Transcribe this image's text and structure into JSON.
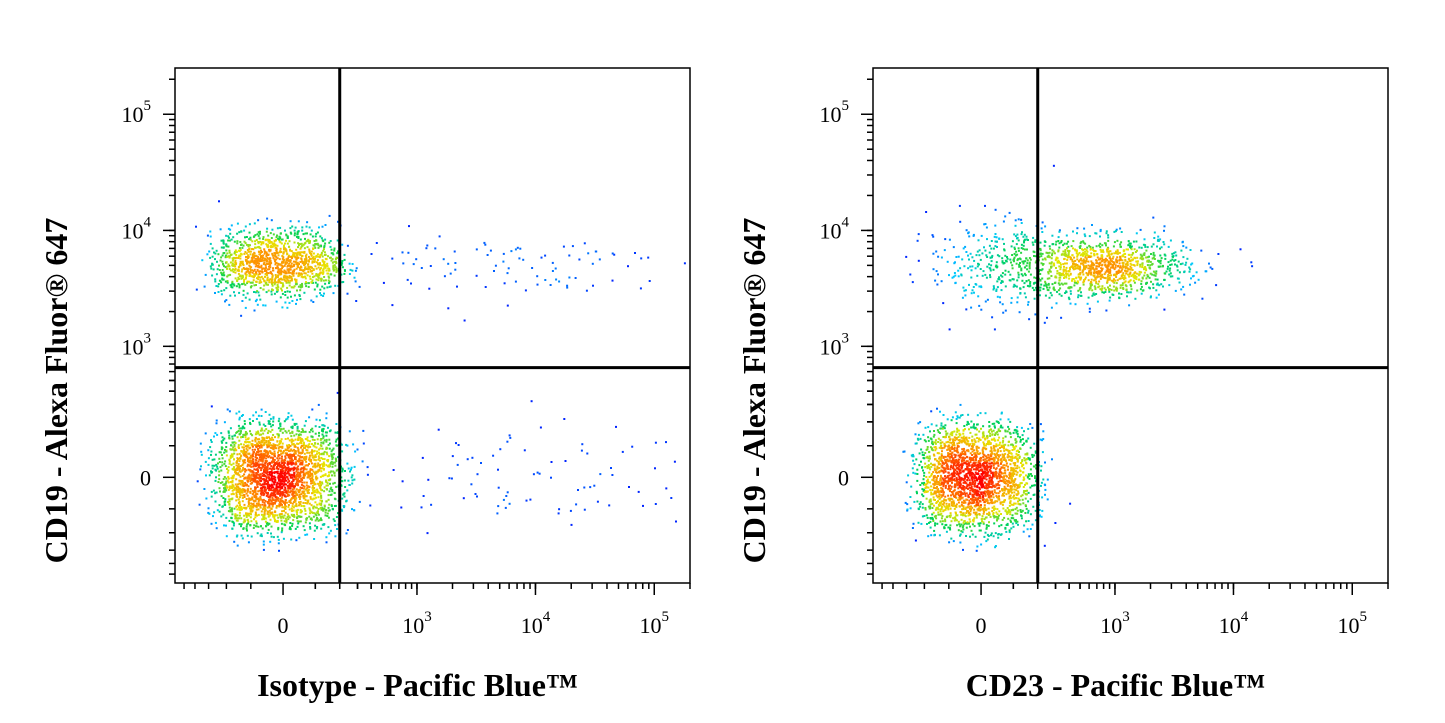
{
  "chart_data": [
    {
      "type": "scatter",
      "subtype": "flow-cytometry-density-dot-plot",
      "xlabel": "Isotype - Pacific Blue™",
      "ylabel": "CD19 - Alexa Fluor® 647",
      "x_scale": "biexponential",
      "y_scale": "biexponential",
      "xlim": [
        -600,
        200000
      ],
      "ylim": [
        -600,
        250000
      ],
      "x_ticks": [
        {
          "value": 0,
          "base": "0",
          "exp": ""
        },
        {
          "value": 1000,
          "base": "10",
          "exp": "3"
        },
        {
          "value": 10000,
          "base": "10",
          "exp": "4"
        },
        {
          "value": 100000,
          "base": "10",
          "exp": "5"
        }
      ],
      "y_ticks": [
        {
          "value": 0,
          "base": "0",
          "exp": ""
        },
        {
          "value": 1000,
          "base": "10",
          "exp": "3"
        },
        {
          "value": 10000,
          "base": "10",
          "exp": "4"
        },
        {
          "value": 100000,
          "base": "10",
          "exp": "5"
        }
      ],
      "quadrant_gate": {
        "x": 200,
        "y": 650
      },
      "grid": false,
      "legend": "none",
      "populations": [
        {
          "x_center": -20,
          "y_center": 0,
          "x_spread": 110,
          "y_spread": 90,
          "count": 2600
        },
        {
          "x_center": -20,
          "y_center": 5200,
          "x_spread": 110,
          "y_spread": 0.15,
          "count": 1300
        },
        {
          "x_center": 4000,
          "y_center": 5000,
          "x_spread": 1.0,
          "y_spread": 0.16,
          "count": 110
        },
        {
          "x_center": 4000,
          "y_center": 0,
          "x_spread": 1.0,
          "y_spread": 90,
          "count": 110
        }
      ]
    },
    {
      "type": "scatter",
      "subtype": "flow-cytometry-density-dot-plot",
      "xlabel": "CD23 - Pacific Blue™",
      "ylabel": "CD19 - Alexa Fluor® 647",
      "x_scale": "biexponential",
      "y_scale": "biexponential",
      "xlim": [
        -600,
        200000
      ],
      "ylim": [
        -600,
        250000
      ],
      "x_ticks": [
        {
          "value": 0,
          "base": "0",
          "exp": ""
        },
        {
          "value": 1000,
          "base": "10",
          "exp": "3"
        },
        {
          "value": 10000,
          "base": "10",
          "exp": "4"
        },
        {
          "value": 100000,
          "base": "10",
          "exp": "5"
        }
      ],
      "y_ticks": [
        {
          "value": 0,
          "base": "0",
          "exp": ""
        },
        {
          "value": 1000,
          "base": "10",
          "exp": "3"
        },
        {
          "value": 10000,
          "base": "10",
          "exp": "4"
        },
        {
          "value": 100000,
          "base": "10",
          "exp": "5"
        }
      ],
      "quadrant_gate": {
        "x": 200,
        "y": 650
      },
      "grid": false,
      "legend": "none",
      "populations": [
        {
          "x_center": -20,
          "y_center": 0,
          "x_spread": 100,
          "y_spread": 90,
          "count": 2300
        },
        {
          "x_center": 800,
          "y_center": 4800,
          "x_spread": 0.35,
          "y_spread": 0.13,
          "count": 1100
        },
        {
          "x_center": 60,
          "y_center": 5000,
          "x_spread": 120,
          "y_spread": 0.2,
          "count": 350
        }
      ]
    }
  ]
}
